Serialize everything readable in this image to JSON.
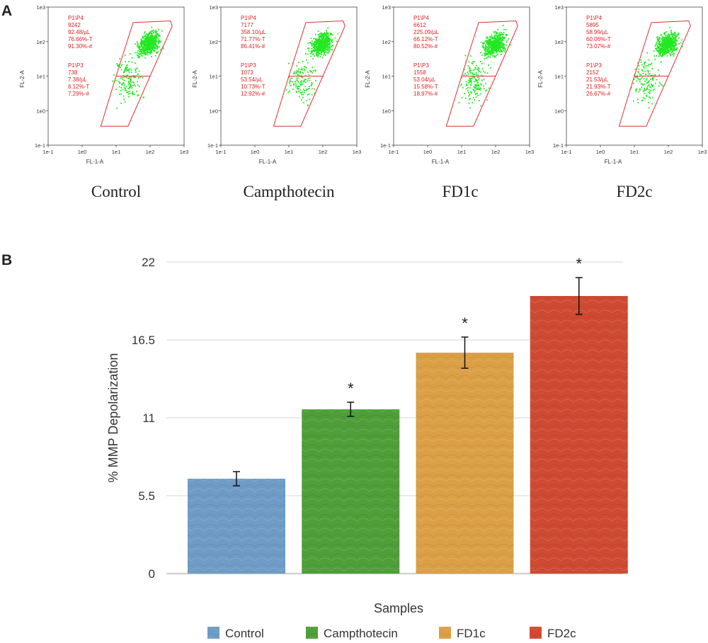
{
  "panels": {
    "a": "A",
    "b": "B"
  },
  "flow": {
    "xlabel": "FL-1-A",
    "ylabel": "FL-2-A",
    "x_ticks": [
      "1e-1",
      "1e0",
      "1e1",
      "1e2",
      "1e3"
    ],
    "y_ticks": [
      "1e3",
      "1e2",
      "1e1",
      "1e0",
      "1e-1"
    ],
    "dot_color": "#22e822",
    "gate_color": "#e03030",
    "plots": [
      {
        "name": "Control",
        "p4": [
          "P1\\P4",
          "9242",
          "92.48/µL",
          "76.66%-T",
          "91.30%-#"
        ],
        "p3": [
          "P1\\P3",
          "738",
          "7.38/µL",
          "6.12%-T",
          "7.29%-#"
        ]
      },
      {
        "name": "Campthotecin",
        "p4": [
          "P1\\P4",
          "7177",
          "358.10/µL",
          "71.77%-T",
          "86.41%-#"
        ],
        "p3": [
          "P1\\P3",
          "1073",
          "53.54/µL",
          "10.73%-T",
          "12.92%-#"
        ]
      },
      {
        "name": "FD1c",
        "p4": [
          "P1\\P4",
          "6612",
          "225.09/µL",
          "66.12%-T",
          "80.52%-#"
        ],
        "p3": [
          "P1\\P3",
          "1558",
          "53.04/µL",
          "15.58%-T",
          "18.97%-#"
        ]
      },
      {
        "name": "FD2c",
        "p4": [
          "P1\\P4",
          "5895",
          "58.99/µL",
          "60.06%-T",
          "73.07%-#"
        ],
        "p3": [
          "P1\\P3",
          "2152",
          "21.53/µL",
          "21.93%-T",
          "26.67%-#"
        ]
      }
    ]
  },
  "chart_data": {
    "type": "bar",
    "title": "",
    "xlabel": "Samples",
    "ylabel": "% MMP Depolarization",
    "categories": [
      "Control",
      "Campthotecin",
      "FD1c",
      "FD2c"
    ],
    "values": [
      6.7,
      11.6,
      15.6,
      19.6
    ],
    "errors": [
      0.5,
      0.5,
      1.1,
      1.3
    ],
    "significance": [
      "",
      "*",
      "*",
      "*"
    ],
    "colors": [
      "#6f9cc6",
      "#4f9e3a",
      "#dba046",
      "#cf4a32"
    ],
    "yticks": [
      "0",
      "5.5",
      "11",
      "16.5",
      "22"
    ],
    "ylim": [
      0,
      22
    ],
    "grid": true,
    "legend": "bottom"
  }
}
